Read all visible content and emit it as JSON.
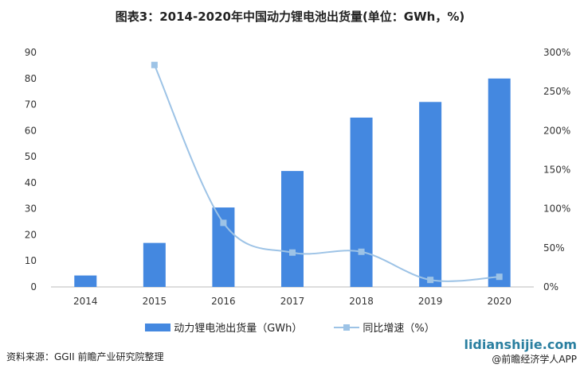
{
  "title": "图表3：2014-2020年中国动力锂电池出货量(单位：GWh，%)",
  "chart_data": {
    "type": "bar+line",
    "title": "图表3：2014-2020年中国动力锂电池出货量(单位：GWh，%)",
    "categories": [
      "2014",
      "2015",
      "2016",
      "2017",
      "2018",
      "2019",
      "2020"
    ],
    "series": [
      {
        "name": "动力锂电池出货量（GWh）",
        "type": "bar",
        "axis": "left",
        "color": "#4488e0",
        "values": [
          4.4,
          16.9,
          30.5,
          44.5,
          65,
          71,
          80
        ]
      },
      {
        "name": "同比增速（%）",
        "type": "line",
        "axis": "right",
        "color": "#9dc3e6",
        "values": [
          null,
          284,
          82,
          44,
          45,
          9,
          13
        ]
      }
    ],
    "ylim_left": [
      0,
      90
    ],
    "yticks_left": [
      "0",
      "10",
      "20",
      "30",
      "40",
      "50",
      "60",
      "70",
      "80",
      "90"
    ],
    "ylim_right": [
      0,
      300
    ],
    "yticks_right": [
      "0%",
      "50%",
      "100%",
      "150%",
      "200%",
      "250%",
      "300%"
    ],
    "grid": false,
    "legend": "bottom"
  },
  "source": "资料来源：GGII 前瞻产业研究院整理",
  "watermark_site": "lidianshijie.com",
  "watermark_app": "@前瞻经济学人APP"
}
